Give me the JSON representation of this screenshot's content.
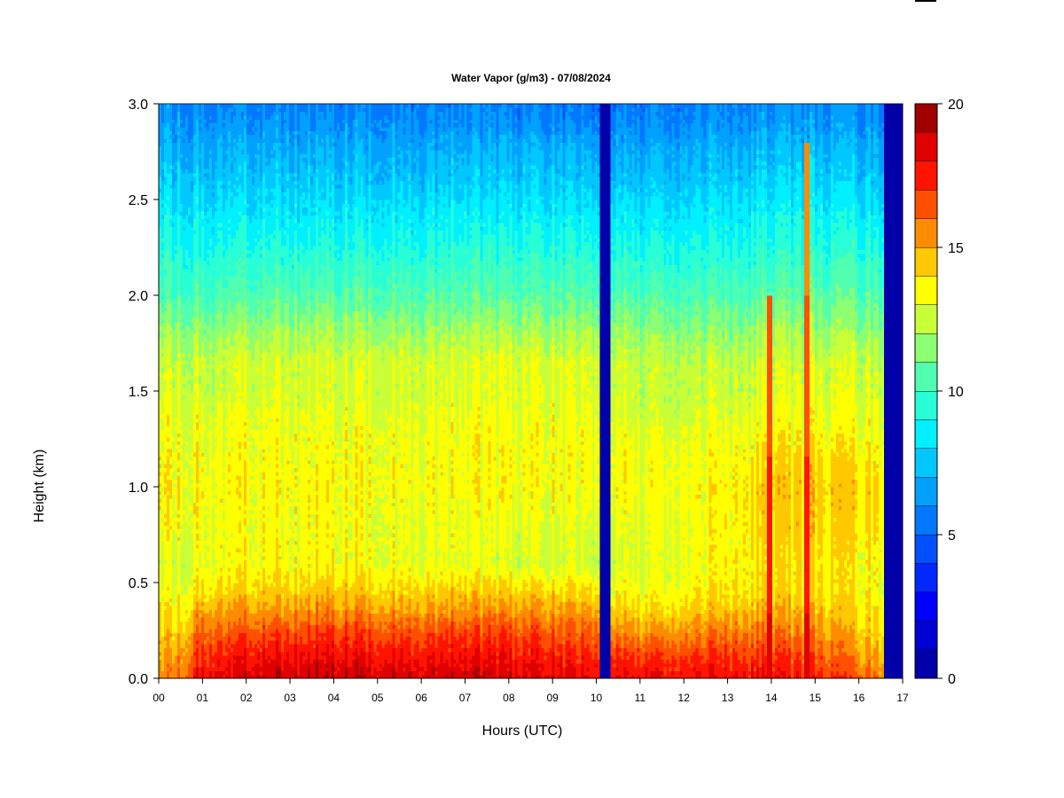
{
  "chart_data": {
    "type": "heatmap",
    "title": "Water Vapor (g/m3) - 07/08/2024",
    "xlabel": "Hours (UTC)",
    "ylabel": "Height (km)",
    "xlim": [
      0,
      17
    ],
    "ylim": [
      0,
      3
    ],
    "x_ticks": [
      "00",
      "01",
      "02",
      "03",
      "04",
      "05",
      "06",
      "07",
      "08",
      "09",
      "10",
      "11",
      "12",
      "13",
      "14",
      "15",
      "16",
      "17"
    ],
    "y_ticks": [
      "0.0",
      "0.5",
      "1.0",
      "1.5",
      "2.0",
      "2.5",
      "3.0"
    ],
    "colorbar": {
      "range": [
        0,
        20
      ],
      "levels": 20,
      "ticks": [
        "0",
        "5",
        "10",
        "15",
        "20"
      ],
      "colors": [
        "#00006e",
        "#0000a8",
        "#0000d4",
        "#0000ff",
        "#0028ff",
        "#0050ff",
        "#0078ff",
        "#00a0ff",
        "#00c8ff",
        "#00f0ff",
        "#28ffd7",
        "#50ffaf",
        "#8cff73",
        "#c8ff37",
        "#ffff00",
        "#ffc800",
        "#ff8c00",
        "#ff5000",
        "#ff1400",
        "#e00000",
        "#a00000",
        "#780000"
      ]
    },
    "profile_height_km": [
      0.0,
      0.05,
      0.15,
      0.25,
      0.35,
      0.45,
      0.6,
      0.8,
      1.0,
      1.2,
      1.35,
      1.5,
      1.65,
      1.8,
      2.0,
      2.2,
      2.4,
      2.6,
      2.75,
      2.9,
      3.0
    ],
    "profiles_gm3": [
      {
        "hour": 0.0,
        "values": [
          15.0,
          15.0,
          14.6,
          14.0,
          13.5,
          13.0,
          12.6,
          13.4,
          13.6,
          13.4,
          13.2,
          12.6,
          12.4,
          11.6,
          10.2,
          9.4,
          8.6,
          7.6,
          7.0,
          6.4,
          6.0
        ]
      },
      {
        "hour": 0.5,
        "values": [
          16.0,
          15.8,
          15.2,
          14.6,
          14.0,
          13.4,
          12.8,
          13.4,
          13.6,
          13.4,
          13.2,
          12.8,
          12.6,
          11.8,
          10.4,
          9.4,
          8.6,
          7.6,
          7.0,
          6.4,
          6.0
        ]
      },
      {
        "hour": 1.0,
        "values": [
          18.4,
          17.8,
          17.0,
          16.2,
          15.2,
          14.2,
          13.4,
          13.4,
          13.6,
          13.4,
          13.2,
          12.6,
          12.6,
          11.8,
          10.4,
          9.4,
          8.6,
          7.6,
          7.0,
          6.4,
          5.9
        ]
      },
      {
        "hour": 2.5,
        "values": [
          18.9,
          18.6,
          17.6,
          16.6,
          15.4,
          14.4,
          13.6,
          13.4,
          13.6,
          13.4,
          13.2,
          12.8,
          12.8,
          12.0,
          10.6,
          9.6,
          8.6,
          7.6,
          7.0,
          6.2,
          5.8
        ]
      },
      {
        "hour": 4.0,
        "values": [
          19.0,
          18.6,
          17.8,
          16.8,
          15.6,
          14.6,
          13.6,
          13.4,
          13.6,
          13.4,
          13.2,
          12.8,
          12.8,
          12.0,
          10.6,
          9.6,
          8.6,
          7.6,
          7.0,
          6.2,
          5.8
        ]
      },
      {
        "hour": 6.0,
        "values": [
          18.8,
          18.4,
          17.6,
          16.6,
          15.4,
          14.4,
          13.2,
          13.2,
          13.5,
          13.4,
          13.2,
          12.8,
          12.9,
          12.0,
          10.6,
          9.6,
          8.6,
          7.6,
          7.0,
          6.2,
          5.8
        ]
      },
      {
        "hour": 8.0,
        "values": [
          18.6,
          18.2,
          17.4,
          16.6,
          15.4,
          14.4,
          12.8,
          13.0,
          13.4,
          13.4,
          13.2,
          12.9,
          12.9,
          12.0,
          10.6,
          9.6,
          8.6,
          7.6,
          7.0,
          6.0,
          5.6
        ]
      },
      {
        "hour": 10.1,
        "values": [
          18.2,
          17.8,
          17.0,
          16.2,
          15.2,
          14.2,
          12.6,
          13.0,
          13.4,
          13.4,
          13.2,
          12.9,
          12.9,
          12.0,
          10.6,
          9.6,
          8.6,
          7.6,
          7.0,
          6.0,
          5.4
        ]
      },
      {
        "hour": 10.3,
        "values": [
          18.0,
          17.6,
          16.6,
          15.4,
          14.4,
          13.4,
          12.6,
          13.0,
          13.4,
          13.3,
          13.0,
          12.6,
          12.6,
          11.8,
          10.4,
          9.4,
          8.4,
          7.4,
          6.8,
          6.0,
          5.4
        ]
      },
      {
        "hour": 11.5,
        "values": [
          18.0,
          17.6,
          16.6,
          15.2,
          14.2,
          13.4,
          13.0,
          13.2,
          13.4,
          13.2,
          12.6,
          12.4,
          12.4,
          11.6,
          10.4,
          9.4,
          8.4,
          7.4,
          6.8,
          6.0,
          5.6
        ]
      },
      {
        "hour": 13.0,
        "values": [
          18.0,
          17.6,
          16.8,
          15.8,
          14.8,
          14.0,
          13.6,
          13.6,
          13.6,
          13.4,
          13.0,
          12.6,
          12.4,
          11.6,
          10.4,
          9.4,
          8.6,
          7.6,
          7.0,
          6.2,
          5.8
        ]
      },
      {
        "hour": 14.0,
        "values": [
          17.8,
          17.4,
          16.6,
          15.6,
          14.8,
          14.0,
          13.8,
          14.2,
          14.4,
          13.8,
          13.2,
          12.8,
          12.6,
          11.8,
          10.6,
          9.6,
          8.8,
          7.8,
          7.2,
          6.4,
          6.0
        ]
      },
      {
        "hour": 15.0,
        "values": [
          17.4,
          17.0,
          16.2,
          15.4,
          14.6,
          14.0,
          13.8,
          14.2,
          14.4,
          13.8,
          13.2,
          12.8,
          12.6,
          11.8,
          10.6,
          9.6,
          8.8,
          7.8,
          7.2,
          6.4,
          6.0
        ]
      },
      {
        "hour": 16.0,
        "values": [
          16.6,
          16.0,
          15.2,
          14.6,
          14.0,
          13.6,
          13.6,
          14.0,
          14.2,
          13.6,
          13.2,
          12.8,
          12.6,
          11.8,
          10.6,
          9.6,
          8.6,
          7.6,
          7.0,
          6.4,
          6.0
        ]
      },
      {
        "hour": 16.55,
        "values": [
          16.0,
          15.6,
          14.8,
          14.2,
          13.8,
          13.6,
          13.6,
          14.0,
          14.2,
          13.6,
          13.2,
          12.8,
          12.6,
          11.8,
          10.6,
          9.6,
          8.6,
          7.6,
          7.0,
          6.4,
          6.0
        ]
      }
    ],
    "gap_intervals_hours": [
      [
        10.1,
        10.3
      ],
      [
        16.6,
        17.0
      ]
    ],
    "gap_value_gm3": 0,
    "spikes": [
      {
        "hour": 13.97,
        "top_km": 2.0,
        "value_gm3": 18.4
      },
      {
        "hour": 14.8,
        "top_km": 2.8,
        "value_gm3": 18.4
      }
    ]
  }
}
